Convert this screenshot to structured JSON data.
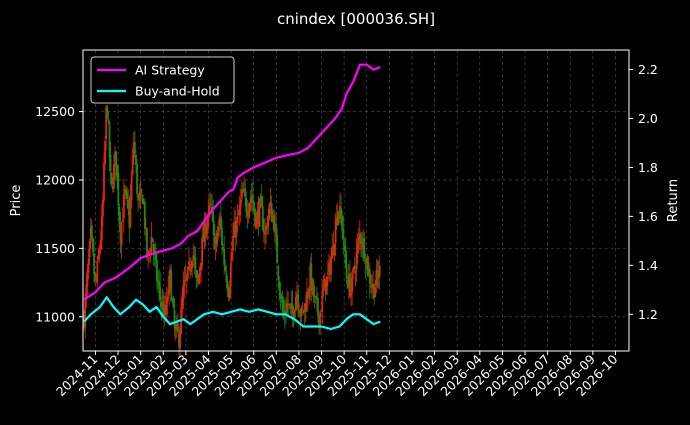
{
  "chart_data": {
    "type": "line",
    "title": "cnindex [000036.SH]",
    "ylabel_left": "Price",
    "ylabel_right": "Return",
    "ylim_left": [
      10750,
      12950
    ],
    "ylim_right": [
      1.05,
      2.28
    ],
    "left_ticks": [
      11000,
      11500,
      12000,
      12500
    ],
    "right_ticks": [
      1.2,
      1.4,
      1.6,
      1.8,
      2.0,
      2.2
    ],
    "x_ticks": [
      "2024-11",
      "2024-12",
      "2025-01",
      "2025-02",
      "2025-03",
      "2025-04",
      "2025-05",
      "2025-06",
      "2025-07",
      "2025-08",
      "2025-09",
      "2025-10",
      "2025-11",
      "2025-12",
      "2026-01",
      "2026-02",
      "2026-03",
      "2026-04",
      "2026-05",
      "2026-06",
      "2026-07",
      "2026-08",
      "2026-09",
      "2026-10"
    ],
    "x_range_months": [
      -0.55,
      23.6
    ],
    "grid": true,
    "legend_position": "top-left",
    "colors": {
      "up": "#e8230f",
      "down": "#1f8a12",
      "ai": "#ff00ff",
      "bh": "#00ffff",
      "grid": "#555555"
    },
    "series": [
      {
        "name": "AI Strategy",
        "color": "#ff00ff",
        "points": [
          [
            -0.5,
            1.26
          ],
          [
            0.0,
            1.29
          ],
          [
            0.4,
            1.33
          ],
          [
            0.9,
            1.35
          ],
          [
            1.5,
            1.39
          ],
          [
            2.0,
            1.43
          ],
          [
            2.6,
            1.45
          ],
          [
            3.0,
            1.46
          ],
          [
            3.4,
            1.47
          ],
          [
            3.8,
            1.49
          ],
          [
            4.1,
            1.52
          ],
          [
            4.5,
            1.54
          ],
          [
            4.8,
            1.58
          ],
          [
            5.2,
            1.63
          ],
          [
            5.5,
            1.66
          ],
          [
            5.9,
            1.7
          ],
          [
            6.1,
            1.71
          ],
          [
            6.3,
            1.76
          ],
          [
            6.6,
            1.78
          ],
          [
            7.0,
            1.8
          ],
          [
            7.5,
            1.82
          ],
          [
            8.0,
            1.84
          ],
          [
            8.5,
            1.85
          ],
          [
            9.0,
            1.86
          ],
          [
            9.4,
            1.88
          ],
          [
            9.8,
            1.92
          ],
          [
            10.2,
            1.96
          ],
          [
            10.6,
            2.0
          ],
          [
            10.9,
            2.04
          ],
          [
            11.1,
            2.1
          ],
          [
            11.4,
            2.15
          ],
          [
            11.7,
            2.22
          ],
          [
            12.0,
            2.22
          ],
          [
            12.3,
            2.2
          ],
          [
            12.6,
            2.21
          ]
        ]
      },
      {
        "name": "Buy-and-Hold",
        "color": "#00ffff",
        "points": [
          [
            -0.5,
            1.17
          ],
          [
            -0.2,
            1.2
          ],
          [
            0.2,
            1.23
          ],
          [
            0.5,
            1.27
          ],
          [
            0.8,
            1.23
          ],
          [
            1.1,
            1.2
          ],
          [
            1.5,
            1.23
          ],
          [
            1.8,
            1.26
          ],
          [
            2.1,
            1.24
          ],
          [
            2.4,
            1.21
          ],
          [
            2.7,
            1.23
          ],
          [
            3.0,
            1.19
          ],
          [
            3.3,
            1.16
          ],
          [
            3.6,
            1.17
          ],
          [
            3.9,
            1.18
          ],
          [
            4.2,
            1.16
          ],
          [
            4.5,
            1.18
          ],
          [
            4.8,
            1.2
          ],
          [
            5.2,
            1.21
          ],
          [
            5.6,
            1.2
          ],
          [
            6.0,
            1.21
          ],
          [
            6.4,
            1.22
          ],
          [
            6.8,
            1.21
          ],
          [
            7.2,
            1.22
          ],
          [
            7.6,
            1.21
          ],
          [
            8.0,
            1.2
          ],
          [
            8.4,
            1.2
          ],
          [
            8.8,
            1.18
          ],
          [
            9.2,
            1.15
          ],
          [
            9.6,
            1.15
          ],
          [
            10.0,
            1.15
          ],
          [
            10.4,
            1.14
          ],
          [
            10.8,
            1.15
          ],
          [
            11.1,
            1.18
          ],
          [
            11.4,
            1.2
          ],
          [
            11.7,
            1.2
          ],
          [
            12.0,
            1.18
          ],
          [
            12.3,
            1.16
          ],
          [
            12.6,
            1.17
          ]
        ]
      },
      {
        "name": "cnindex [000036.SH]",
        "kind": "price_path",
        "points": [
          [
            -0.5,
            11000
          ],
          [
            -0.2,
            11600
          ],
          [
            0.0,
            11200
          ],
          [
            0.3,
            11700
          ],
          [
            0.5,
            12600
          ],
          [
            0.7,
            11900
          ],
          [
            0.9,
            12200
          ],
          [
            1.1,
            11600
          ],
          [
            1.3,
            11900
          ],
          [
            1.5,
            11700
          ],
          [
            1.7,
            12300
          ],
          [
            1.9,
            11800
          ],
          [
            2.1,
            11900
          ],
          [
            2.3,
            11400
          ],
          [
            2.5,
            11600
          ],
          [
            2.7,
            11300
          ],
          [
            2.9,
            11100
          ],
          [
            3.1,
            11000
          ],
          [
            3.3,
            11300
          ],
          [
            3.5,
            10900
          ],
          [
            3.7,
            10850
          ],
          [
            3.9,
            11200
          ],
          [
            4.1,
            11300
          ],
          [
            4.3,
            11500
          ],
          [
            4.5,
            11200
          ],
          [
            4.7,
            11500
          ],
          [
            4.9,
            11700
          ],
          [
            5.1,
            11800
          ],
          [
            5.3,
            11500
          ],
          [
            5.5,
            11700
          ],
          [
            5.7,
            11400
          ],
          [
            5.9,
            11200
          ],
          [
            6.1,
            11600
          ],
          [
            6.3,
            11700
          ],
          [
            6.5,
            11900
          ],
          [
            6.7,
            11800
          ],
          [
            6.9,
            11900
          ],
          [
            7.1,
            11700
          ],
          [
            7.3,
            11800
          ],
          [
            7.5,
            11600
          ],
          [
            7.7,
            11800
          ],
          [
            7.9,
            11700
          ],
          [
            8.1,
            11300
          ],
          [
            8.3,
            11000
          ],
          [
            8.5,
            11100
          ],
          [
            8.7,
            11000
          ],
          [
            8.9,
            11200
          ],
          [
            9.1,
            11000
          ],
          [
            9.3,
            11100
          ],
          [
            9.5,
            11300
          ],
          [
            9.7,
            11100
          ],
          [
            9.9,
            11000
          ],
          [
            10.1,
            11200
          ],
          [
            10.3,
            11300
          ],
          [
            10.5,
            11500
          ],
          [
            10.7,
            11800
          ],
          [
            10.9,
            11700
          ],
          [
            11.1,
            11300
          ],
          [
            11.3,
            11200
          ],
          [
            11.5,
            11400
          ],
          [
            11.7,
            11600
          ],
          [
            11.9,
            11500
          ],
          [
            12.1,
            11300
          ],
          [
            12.3,
            11200
          ],
          [
            12.5,
            11300
          ],
          [
            12.6,
            11350
          ]
        ]
      }
    ]
  }
}
